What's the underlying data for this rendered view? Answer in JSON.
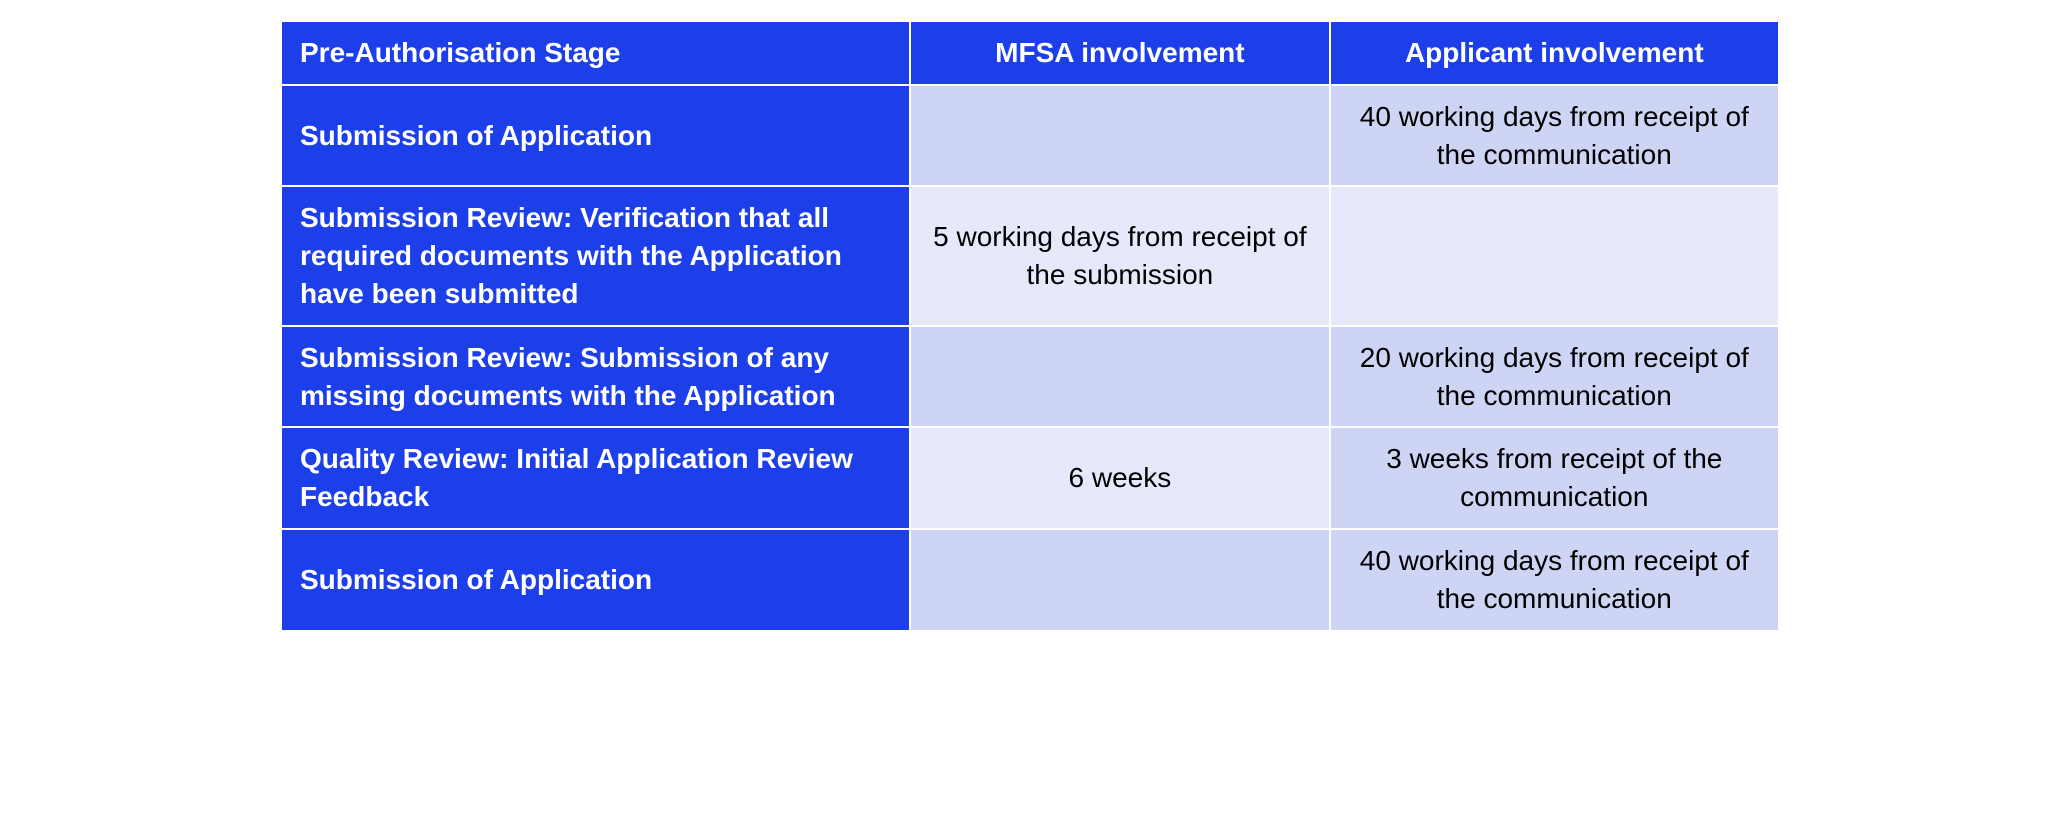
{
  "table": {
    "columns": [
      {
        "label": "Pre-Authorisation Stage",
        "align": "left"
      },
      {
        "label": "MFSA involvement",
        "align": "center"
      },
      {
        "label": "Applicant involvement",
        "align": "center"
      }
    ],
    "rows": [
      {
        "stage": "Submission of Application",
        "mfsa": "",
        "applicant": "40 working days from receipt of the communication",
        "mfsa_bg": "#ced4f3",
        "applicant_bg": "#ced4f3"
      },
      {
        "stage": "Submission Review: Verification that all required documents with the Application have been submitted",
        "mfsa": "5 working days from receipt of the submission",
        "applicant": "",
        "mfsa_bg": "#e6e9f9",
        "applicant_bg": "#e6e9f9"
      },
      {
        "stage": "Submission Review: Submission of any missing documents with the Application",
        "mfsa": "",
        "applicant": "20 working days from receipt of the communication",
        "mfsa_bg": "#ced4f3",
        "applicant_bg": "#ced4f3"
      },
      {
        "stage": "Quality Review: Initial Application Review Feedback",
        "mfsa": "6 weeks",
        "applicant": "3 weeks from receipt of the communication",
        "mfsa_bg": "#e6e9f9",
        "applicant_bg": "#ced4f3"
      },
      {
        "stage": "Submission of Application",
        "mfsa": "",
        "applicant": "40 working days from receipt of the communication",
        "mfsa_bg": "#ced4f3",
        "applicant_bg": "#ced4f3"
      }
    ],
    "colors": {
      "header_bg": "#1d3fea",
      "header_text": "#ffffff",
      "stage_bg": "#1d3fea",
      "stage_text": "#ffffff",
      "data_text": "#000000",
      "border": "#ffffff",
      "light_a": "#e6e9f9",
      "light_b": "#ced4f3"
    },
    "font_size": 28,
    "font_family": "Arial"
  }
}
